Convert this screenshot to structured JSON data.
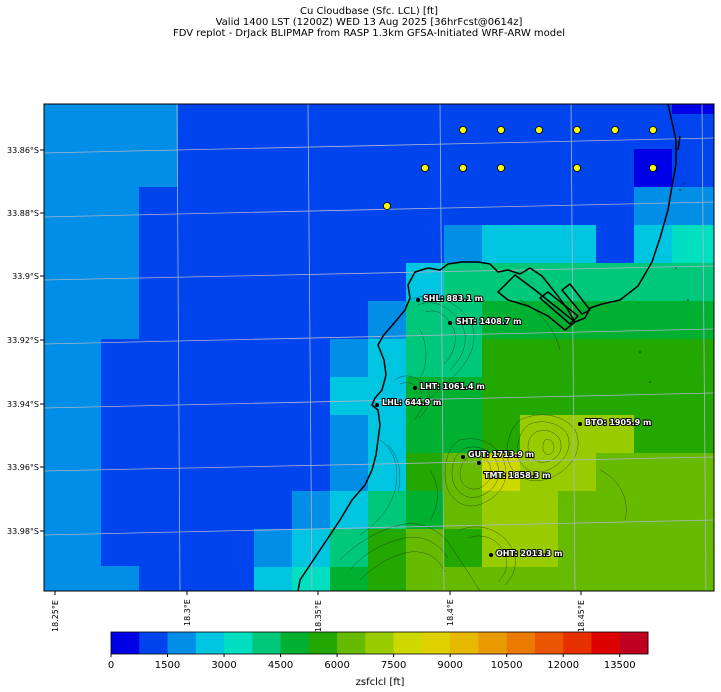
{
  "header": {
    "line1": "Cu Cloudbase (Sfc. LCL) [ft]",
    "line2": "Valid 1400 LST (1200Z) WED 13 Aug 2025 [36hrFcst@0614z]",
    "line3": "FDV replot - DrJack BLIPMAP from RASP 1.3km GFSA-Initiated WRF-ARW model"
  },
  "axes": {
    "lat_labels": [
      "33.86°S",
      "33.88°S",
      "33.9°S",
      "33.92°S",
      "33.94°S",
      "33.96°S",
      "33.98°S"
    ],
    "lon_labels": [
      "18.25°E",
      "18.3°E",
      "18.35°E",
      "18.4°E",
      "18.45°E"
    ]
  },
  "sites": [
    {
      "label": "SHL: 883.1 m"
    },
    {
      "label": "SHT: 1408.7 m"
    },
    {
      "label": "LHT: 1061.4 m"
    },
    {
      "label": "LHL: 644.9 m"
    },
    {
      "label": "BTO: 1905.9 m"
    },
    {
      "label": "GUT: 1713.9 m"
    },
    {
      "label": "TMT: 1858.3 m"
    },
    {
      "label": "OHT: 2013.3 m"
    }
  ],
  "colorbar": {
    "label": "zsfclcl [ft]",
    "tick_labels": [
      "0",
      "1500",
      "3000",
      "4500",
      "6000",
      "7500",
      "9000",
      "10500",
      "12000",
      "13500"
    ],
    "colors": [
      "#0000e6",
      "#0044ee",
      "#008ee6",
      "#00c5e0",
      "#00dfc0",
      "#00c87a",
      "#00b030",
      "#22a800",
      "#66bb00",
      "#99cc00",
      "#ccd800",
      "#e0d000",
      "#e6b800",
      "#e89a00",
      "#ea7a00",
      "#ea5500",
      "#e63000",
      "#dd0000",
      "#c00020"
    ]
  },
  "colors": {
    "grid": "#aab4cc",
    "coast": "#000000",
    "marker": "#ffff00"
  }
}
